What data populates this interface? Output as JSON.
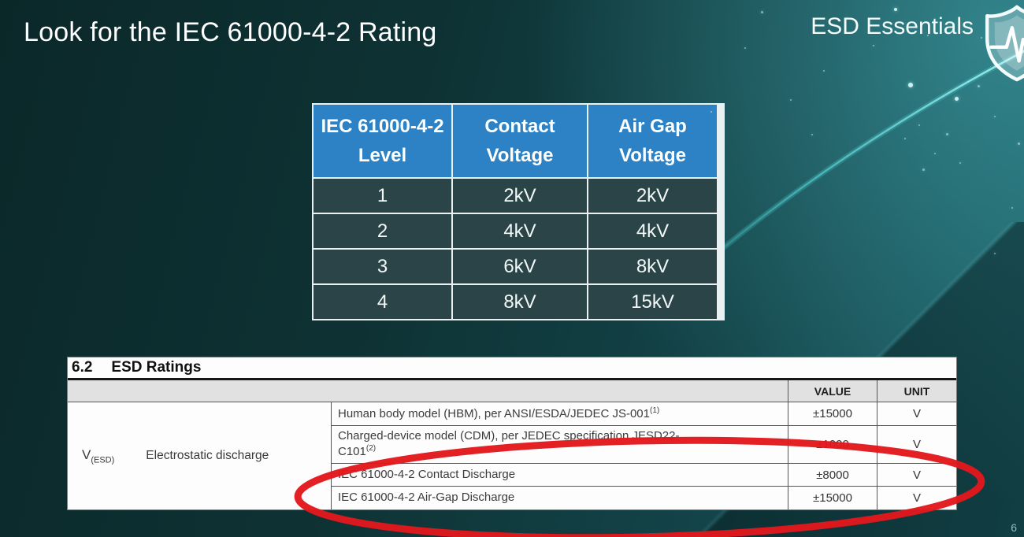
{
  "slide": {
    "title": "Look for the IEC 61000-4-2 Rating",
    "page_number": "6",
    "brand": {
      "label": "ESD Essentials",
      "icon": "shield-pulse-icon"
    }
  },
  "colors": {
    "background_teal_dark": "#0b2829",
    "background_teal_light": "#1b5f66",
    "table_header_blue": "#2c82c4",
    "highlight_red": "#e2181c",
    "swoosh_cyan": "#54e0de",
    "datasheet_header_gray": "#e1e1e1"
  },
  "iec_table": {
    "headers": [
      {
        "lines": [
          "IEC 61000-4-2",
          "Level"
        ]
      },
      {
        "lines": [
          "Contact",
          "Voltage"
        ]
      },
      {
        "lines": [
          "Air Gap",
          "Voltage"
        ]
      }
    ],
    "rows": [
      [
        "1",
        "2kV",
        "2kV"
      ],
      [
        "2",
        "4kV",
        "4kV"
      ],
      [
        "3",
        "6kV",
        "8kV"
      ],
      [
        "4",
        "8kV",
        "15kV"
      ]
    ]
  },
  "datasheet": {
    "section_number": "6.2",
    "section_title": "ESD Ratings",
    "value_header": "VALUE",
    "unit_header": "UNIT",
    "param_symbol": "V",
    "param_symbol_sub": "(ESD)",
    "param_name": "Electrostatic discharge",
    "rows": [
      {
        "desc_lines": [
          "Human body model (HBM), per ANSI/ESDA/JEDEC JS-001"
        ],
        "sup": "(1)",
        "value": "±15000",
        "unit": "V"
      },
      {
        "desc_lines": [
          "Charged-device model (CDM), per JEDEC specification JESD22-",
          "C101"
        ],
        "sup": "(2)",
        "value": "±1000",
        "unit": "V"
      },
      {
        "desc_lines": [
          "IEC 61000-4-2 Contact Discharge"
        ],
        "sup": null,
        "value": "±8000",
        "unit": "V"
      },
      {
        "desc_lines": [
          "IEC 61000-4-2 Air-Gap Discharge"
        ],
        "sup": null,
        "value": "±15000",
        "unit": "V"
      }
    ]
  }
}
